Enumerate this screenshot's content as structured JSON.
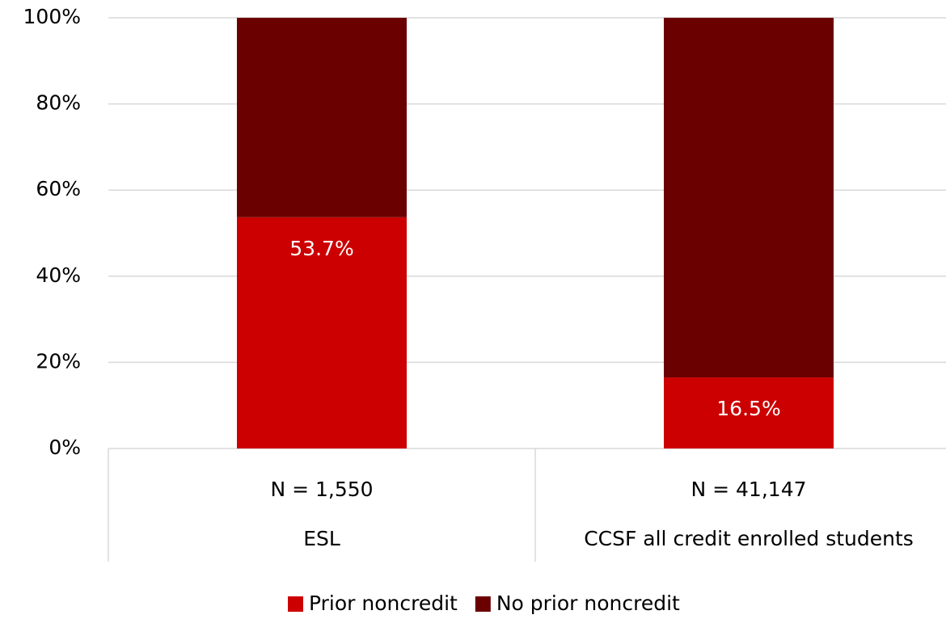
{
  "chart_data": {
    "type": "stacked_bar",
    "categories": [
      [
        "N = 1,550",
        "ESL"
      ],
      [
        "N = 41,147",
        "CCSF all credit enrolled students"
      ]
    ],
    "series": [
      {
        "name": "Prior noncredit",
        "color": "#cc0000",
        "values": [
          53.7,
          16.5
        ],
        "value_labels": [
          "53.7%",
          "16.5%"
        ]
      },
      {
        "name": "No prior noncredit",
        "color": "#6b0000",
        "values": [
          46.3,
          83.5
        ]
      }
    ],
    "ylim": [
      0,
      100
    ],
    "yticks": [
      {
        "value": 0,
        "label": "0%"
      },
      {
        "value": 20,
        "label": "20%"
      },
      {
        "value": 40,
        "label": "40%"
      },
      {
        "value": 60,
        "label": "60%"
      },
      {
        "value": 80,
        "label": "80%"
      },
      {
        "value": 100,
        "label": "100%"
      }
    ],
    "grid": true,
    "legend": "bottom"
  }
}
